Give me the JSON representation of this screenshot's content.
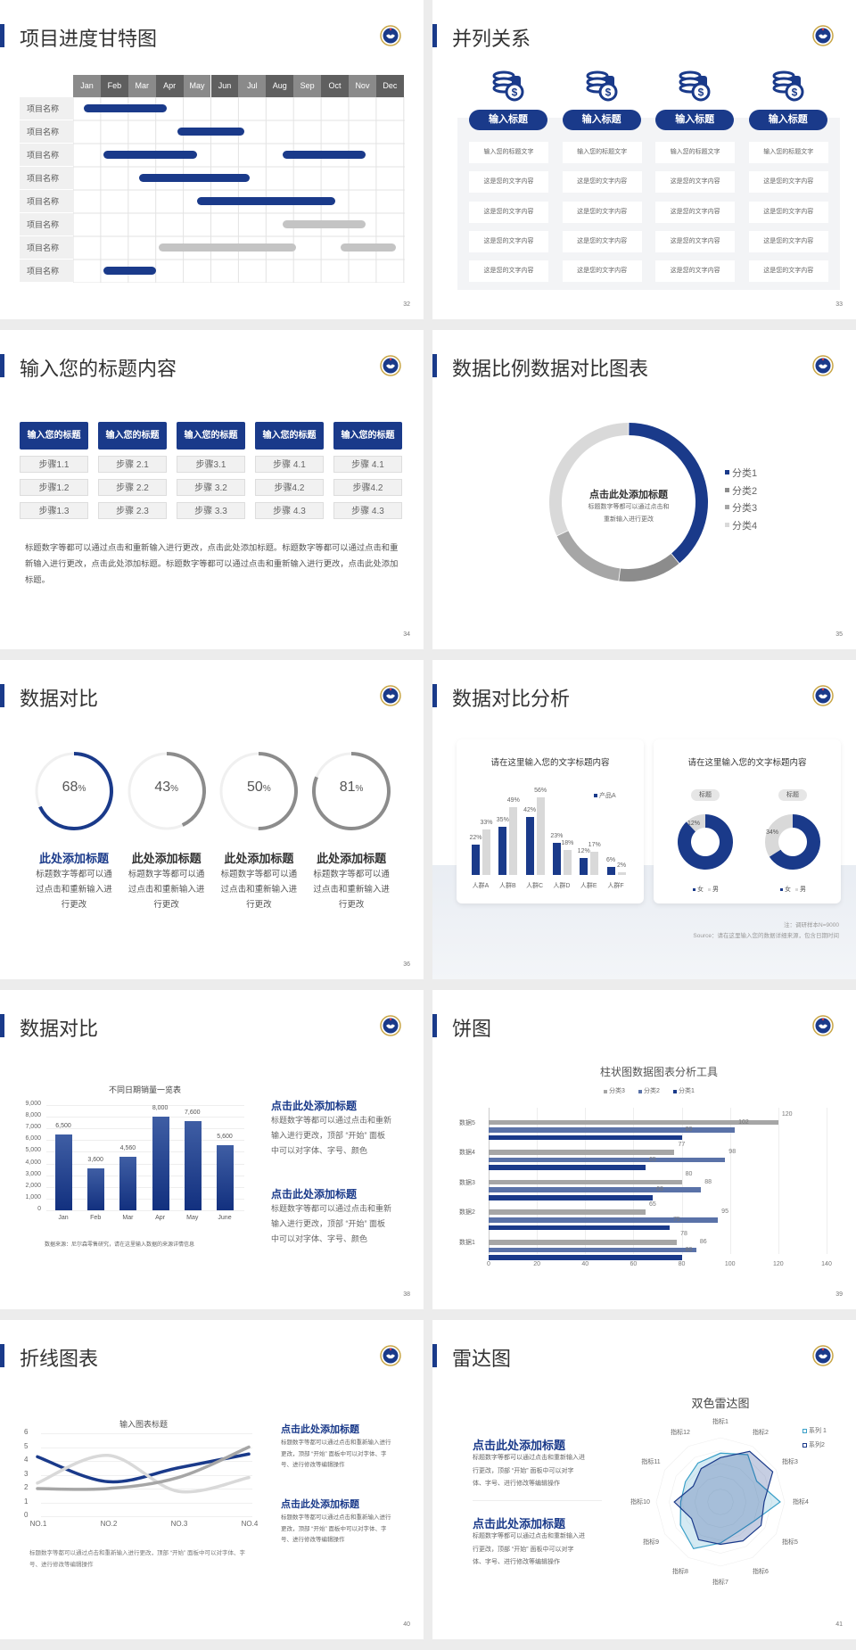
{
  "colors": {
    "navy": "#1a3a8a",
    "gray": "#8c8c8c",
    "mid": "#a6a6a6",
    "light": "#d9d9d9",
    "lighter": "#e6e6e6",
    "bg": "#ececec"
  },
  "logo_icon": "emblem-icon",
  "s32": {
    "title": "项目进度甘特图",
    "page": "32",
    "months": [
      "Jan",
      "Feb",
      "Mar",
      "Apr",
      "May",
      "Jun",
      "Jul",
      "Aug",
      "Sep",
      "Oct",
      "Nov",
      "Dec"
    ],
    "rows": [
      {
        "label": "项目名称",
        "bars": [
          {
            "start": 0.4,
            "end": 3.4,
            "color": "navy"
          }
        ]
      },
      {
        "label": "项目名称",
        "bars": [
          {
            "start": 3.8,
            "end": 6.2,
            "color": "navy"
          }
        ]
      },
      {
        "label": "项目名称",
        "bars": [
          {
            "start": 1.1,
            "end": 4.5,
            "color": "navy"
          },
          {
            "start": 7.6,
            "end": 10.6,
            "color": "navy"
          }
        ]
      },
      {
        "label": "项目名称",
        "bars": [
          {
            "start": 2.4,
            "end": 6.4,
            "color": "navy"
          }
        ]
      },
      {
        "label": "项目名称",
        "bars": [
          {
            "start": 4.5,
            "end": 9.5,
            "color": "navy"
          }
        ]
      },
      {
        "label": "项目名称",
        "bars": [
          {
            "start": 7.6,
            "end": 10.6,
            "color": "gray"
          }
        ]
      },
      {
        "label": "项目名称",
        "bars": [
          {
            "start": 3.1,
            "end": 8.1,
            "color": "gray"
          },
          {
            "start": 9.7,
            "end": 11.7,
            "color": "gray"
          }
        ]
      },
      {
        "label": "项目名称",
        "bars": [
          {
            "start": 1.1,
            "end": 3.0,
            "color": "navy"
          }
        ]
      }
    ]
  },
  "s33": {
    "title": "并列关系",
    "page": "33",
    "icon": "coins-dollar-icon",
    "columns": [
      {
        "header": "输入标题",
        "cells": [
          "输入您的标题文字",
          "这是您的文字内容",
          "这是您的文字内容",
          "这是您的文字内容",
          "这是您的文字内容"
        ]
      },
      {
        "header": "输入标题",
        "cells": [
          "输入您的标题文字",
          "这是您的文字内容",
          "这是您的文字内容",
          "这是您的文字内容",
          "这是您的文字内容"
        ]
      },
      {
        "header": "输入标题",
        "cells": [
          "输入您的标题文字",
          "这是您的文字内容",
          "这是您的文字内容",
          "这是您的文字内容",
          "这是您的文字内容"
        ]
      },
      {
        "header": "输入标题",
        "cells": [
          "输入您的标题文字",
          "这是您的文字内容",
          "这是您的文字内容",
          "这是您的文字内容",
          "这是您的文字内容"
        ]
      }
    ]
  },
  "s34": {
    "title": "输入您的标题内容",
    "page": "34",
    "columns": [
      {
        "header": "输入您的标题",
        "steps": [
          "步骤1.1",
          "步骤1.2",
          "步骤1.3"
        ]
      },
      {
        "header": "输入您的标题",
        "steps": [
          "步骤 2.1",
          "步骤 2.2",
          "步骤 2.3"
        ]
      },
      {
        "header": "输入您的标题",
        "steps": [
          "步骤3.1",
          "步骤 3.2",
          "步骤 3.3"
        ]
      },
      {
        "header": "输入您的标题",
        "steps": [
          "步骤 4.1",
          "步骤4.2",
          "步骤 4.3"
        ]
      },
      {
        "header": "输入您的标题",
        "steps": [
          "步骤 4.1",
          "步骤4.2",
          "步骤 4.3"
        ]
      }
    ],
    "paragraph": "标题数字等都可以通过点击和重新输入进行更改，点击此处添加标题。标题数字等都可以通过点击和重新输入进行更改，点击此处添加标题。标题数字等都可以通过点击和重新输入进行更改，点击此处添加标题。"
  },
  "s35": {
    "title": "数据比例数据对比图表",
    "page": "35",
    "center_title": "点击此处添加标题",
    "center_text_1": "标题数字等都可以通过点击和",
    "center_text_2": "重新输入进行更改",
    "chart_data": {
      "type": "pie",
      "donut": true,
      "categories": [
        "分类1",
        "分类2",
        "分类3",
        "分类4"
      ],
      "values": [
        39,
        13,
        16,
        32
      ],
      "colors": [
        "#1a3a8a",
        "#8c8c8c",
        "#a6a6a6",
        "#d9d9d9"
      ],
      "legend": "right"
    }
  },
  "s36": {
    "title": "数据对比",
    "page": "36",
    "items": [
      {
        "value": 68,
        "unit": "%",
        "color": "#1a3a8a",
        "heading": "此处添加标题",
        "lines": [
          "标题数字等都可以通",
          "过点击和重新输入进",
          "行更改"
        ]
      },
      {
        "value": 43,
        "unit": "%",
        "color": "#8c8c8c",
        "heading": "此处添加标题",
        "lines": [
          "标题数字等都可以通",
          "过点击和重新输入进",
          "行更改"
        ]
      },
      {
        "value": 50,
        "unit": "%",
        "color": "#8c8c8c",
        "heading": "此处添加标题",
        "lines": [
          "标题数字等都可以通",
          "过点击和重新输入进",
          "行更改"
        ]
      },
      {
        "value": 81,
        "unit": "%",
        "color": "#8c8c8c",
        "heading": "此处添加标题",
        "lines": [
          "标题数字等都可以通",
          "过点击和重新输入进",
          "行更改"
        ]
      }
    ]
  },
  "s37": {
    "title": "数据对比分析",
    "page": "37",
    "left_card_title": "请在这里输入您的文字标题内容",
    "right_card_title": "请在这里输入您的文字标题内容",
    "note": "注：调研样本N=9000",
    "source": "Source：请在这里输入您的数据详细来源，包含日期时间",
    "chart_data": [
      {
        "type": "bar",
        "categories": [
          "人群A",
          "人群B",
          "人群C",
          "人群D",
          "人群E",
          "人群F"
        ],
        "series": [
          {
            "name": "产品A",
            "values": [
              22,
              35,
              42,
              23,
              12,
              6
            ],
            "color": "#1a3a8a"
          },
          {
            "values": [
              33,
              49,
              56,
              18,
              17,
              2
            ],
            "color": "#d9d9d9"
          }
        ],
        "data_labels": "percent",
        "legend": "top-right"
      },
      {
        "type": "pie",
        "donut": true,
        "title": "标题",
        "categories": [
          "女",
          "男"
        ],
        "values": [
          88,
          12
        ],
        "colors": [
          "#1a3a8a",
          "#d9d9d9"
        ],
        "shown_label": "12%"
      },
      {
        "type": "pie",
        "donut": true,
        "title": "标题",
        "categories": [
          "女",
          "男"
        ],
        "values": [
          66,
          34
        ],
        "colors": [
          "#1a3a8a",
          "#d9d9d9"
        ],
        "shown_label": "34%"
      }
    ]
  },
  "s38": {
    "title": "数据对比",
    "page": "38",
    "source": "数据来源：尼尔森零售研究，请在这里输入数据的来源详情信息",
    "blocks": [
      {
        "heading": "点击此处添加标题",
        "lines": [
          "标题数字等都可以通过点击和重新",
          "输入进行更改，顶部 “开始” 面板",
          "中可以对字体、字号、颜色"
        ]
      },
      {
        "heading": "点击此处添加标题",
        "lines": [
          "标题数字等都可以通过点击和重新",
          "输入进行更改，顶部 “开始” 面板",
          "中可以对字体、字号、颜色"
        ]
      }
    ],
    "chart_data": {
      "type": "bar",
      "title": "不同日期销量一览表",
      "categories": [
        "Jan",
        "Feb",
        "Mar",
        "Apr",
        "May",
        "June"
      ],
      "values": [
        6500,
        3600,
        4560,
        8000,
        7600,
        5600
      ],
      "value_labels": [
        "6,500",
        "3,600",
        "4,560",
        "8,000",
        "7,600",
        "5,600"
      ],
      "ylim": [
        0,
        9000
      ],
      "yticks": [
        "0",
        "1,000",
        "2,000",
        "3,000",
        "4,000",
        "5,000",
        "6,000",
        "7,000",
        "8,000",
        "9,000"
      ],
      "grid": true
    }
  },
  "s39": {
    "title": "饼图",
    "page": "39",
    "chart_data": {
      "type": "bar",
      "orientation": "horizontal",
      "title": "柱状图数据图表分析工具",
      "categories": [
        "数据1",
        "数据2",
        "数据3",
        "数据4",
        "数据5"
      ],
      "series": [
        {
          "name": "分类3",
          "values": [
            78,
            65,
            80,
            77,
            120
          ],
          "color": "#a6a6a6"
        },
        {
          "name": "分类2",
          "values": [
            86,
            95,
            88,
            98,
            102
          ],
          "color": "#5a72a8"
        },
        {
          "name": "分类1",
          "values": [
            80,
            75,
            68,
            65,
            80
          ],
          "color": "#1a3a8a"
        }
      ],
      "xlim": [
        0,
        140
      ],
      "xticks": [
        "0",
        "20",
        "40",
        "60",
        "80",
        "100",
        "120",
        "140"
      ],
      "legend": "top",
      "grid": true
    }
  },
  "s40": {
    "title": "折线图表",
    "page": "40",
    "caption": "标题数字等都可以通过点击和重新输入进行更改，顶部 “开始” 面板中可以对字体、字号、进行修改等编辑操作",
    "blocks": [
      {
        "heading": "点击此处添加标题",
        "lines": [
          "标题数字等都可以通过点击和重新输入进行",
          "更改，顶部 “开始” 面板中可以对字体、字",
          "号、进行修改等编辑操作"
        ]
      },
      {
        "heading": "点击此处添加标题",
        "lines": [
          "标题数字等都可以通过点击和重新输入进行",
          "更改，顶部 “开始” 面板中可以对字体、字",
          "号、进行修改等编辑操作"
        ]
      }
    ],
    "chart_data": {
      "type": "line",
      "smooth": true,
      "title": "输入图表标题",
      "categories": [
        "NO.1",
        "NO.2",
        "NO.3",
        "NO.4"
      ],
      "series": [
        {
          "values": [
            4.3,
            2.5,
            3.5,
            4.5
          ],
          "color": "#1a3a8a"
        },
        {
          "values": [
            2.4,
            4.4,
            1.8,
            2.8
          ],
          "color": "#d9d9d9"
        },
        {
          "values": [
            2.0,
            2.0,
            2.8,
            5.0
          ],
          "color": "#a6a6a6"
        }
      ],
      "ylim": [
        0,
        6
      ],
      "yticks": [
        "0",
        "1",
        "2",
        "3",
        "4",
        "5",
        "6"
      ],
      "grid": true
    }
  },
  "s41": {
    "title": "雷达图",
    "page": "41",
    "blocks": [
      {
        "heading": "点击此处添加标题",
        "lines": [
          "标题数字等都可以通过点击和重新输入进",
          "行更改，顶部 “开始” 面板中可以对字",
          "体、字号、进行修改等编辑操作"
        ]
      },
      {
        "heading": "点击此处添加标题",
        "lines": [
          "标题数字等都可以通过点击和重新输入进",
          "行更改，顶部 “开始” 面板中可以对字",
          "体、字号、进行修改等编辑操作"
        ]
      }
    ],
    "chart_data": {
      "type": "radar",
      "title": "双色雷达图",
      "categories": [
        "指标1",
        "指标2",
        "指标3",
        "指标4",
        "指标5",
        "指标6",
        "指标7",
        "指标8",
        "指标9",
        "指标10",
        "指标11",
        "指标12"
      ],
      "series": [
        {
          "name": "系列 1",
          "values": [
            76,
            85,
            65,
            93,
            60,
            54,
            64,
            84,
            72,
            62,
            63,
            70
          ],
          "color": "#3aa0c8"
        },
        {
          "name": "系列2",
          "values": [
            69,
            91,
            94,
            68,
            73,
            70,
            66,
            68,
            52,
            72,
            49,
            60
          ],
          "color": "#1a3a8a"
        }
      ],
      "rmax": 100,
      "legend": "top-right"
    }
  }
}
